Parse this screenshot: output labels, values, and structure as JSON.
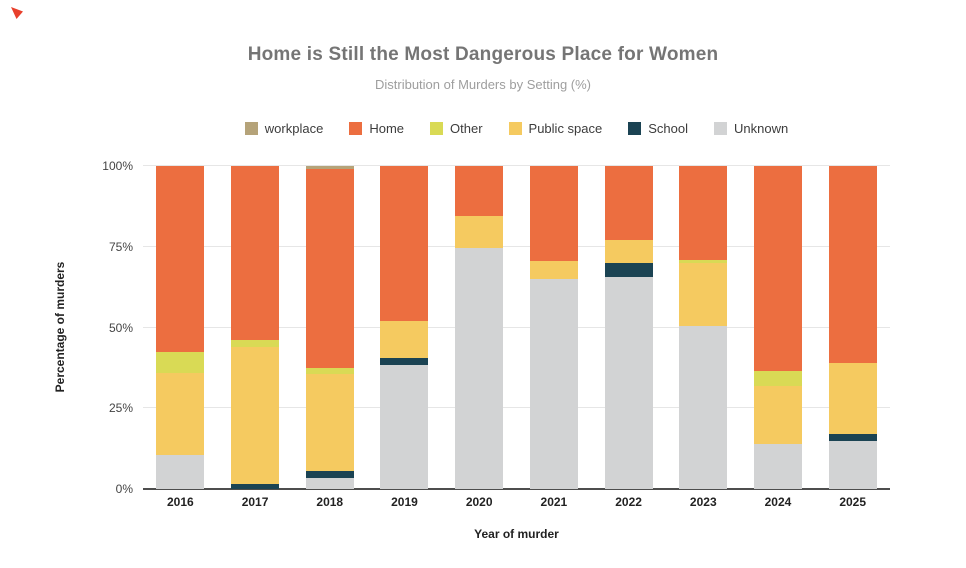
{
  "marker": {
    "color": "#e8402c"
  },
  "chart_data": {
    "type": "bar",
    "stacked": true,
    "normalized_percent": true,
    "title": "Home is Still the Most Dangerous Place for Women",
    "subtitle": "Distribution of Murders by Setting (%)",
    "xlabel": "Year of murder",
    "ylabel": "Percentage of murders",
    "ylim": [
      0,
      100
    ],
    "grid": true,
    "legend_position": "top",
    "y_axis": {
      "ticks": [
        {
          "label": "0%",
          "pct": 0
        },
        {
          "label": "25%",
          "pct": 25
        },
        {
          "label": "50%",
          "pct": 50
        },
        {
          "label": "75%",
          "pct": 75
        },
        {
          "label": "100%",
          "pct": 100
        }
      ]
    },
    "categories": [
      "2016",
      "2017",
      "2018",
      "2019",
      "2020",
      "2021",
      "2022",
      "2023",
      "2024",
      "2025"
    ],
    "legend": [
      {
        "label": "workplace",
        "color": "#b5a379"
      },
      {
        "label": "Home",
        "color": "#ec6e40"
      },
      {
        "label": "Other",
        "color": "#d9da55"
      },
      {
        "label": "Public space",
        "color": "#f5ca60"
      },
      {
        "label": "School",
        "color": "#1b4353"
      },
      {
        "label": "Unknown",
        "color": "#d2d3d4"
      }
    ],
    "stack_order_bottom_to_top": [
      "Unknown",
      "School",
      "Public space",
      "Other",
      "Home",
      "workplace"
    ],
    "series": [
      {
        "name": "Unknown",
        "color": "#d2d3d4",
        "values": [
          10.5,
          0,
          3.5,
          38.5,
          74.5,
          65,
          65.5,
          50.5,
          14,
          15
        ]
      },
      {
        "name": "School",
        "color": "#1b4353",
        "values": [
          0,
          1.5,
          2,
          2,
          0,
          0,
          4.5,
          0,
          0,
          2
        ]
      },
      {
        "name": "Public space",
        "color": "#f5ca60",
        "values": [
          25.5,
          42.5,
          30,
          11.5,
          10,
          5.5,
          7,
          19.5,
          18,
          22
        ]
      },
      {
        "name": "Other",
        "color": "#d9da55",
        "values": [
          6.5,
          2,
          2,
          0,
          0,
          0,
          0,
          1,
          4.5,
          0
        ]
      },
      {
        "name": "Home",
        "color": "#ec6e40",
        "values": [
          57.5,
          54,
          61.5,
          48,
          15.5,
          29.5,
          23,
          29,
          63.5,
          61
        ]
      },
      {
        "name": "workplace",
        "color": "#b5a379",
        "values": [
          0,
          0,
          1,
          0,
          0,
          0,
          0,
          0,
          0,
          0
        ]
      }
    ]
  }
}
